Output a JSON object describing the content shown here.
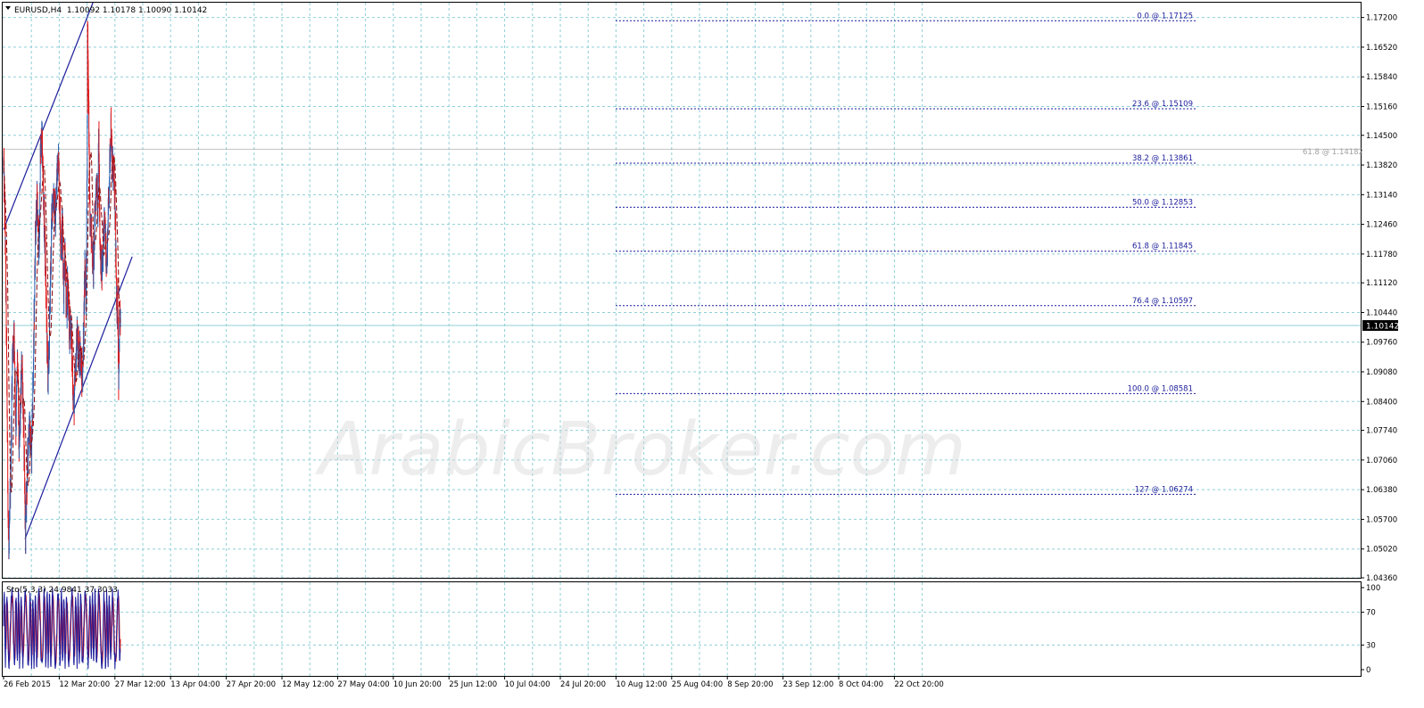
{
  "chart_data": {
    "type": "candlestick",
    "symbol_header": "EURUSD,H4  1.10092 1.10178 1.10090 1.10142",
    "watermark": "ArabicBroker.com",
    "price_axis": {
      "ylim": [
        1.0436,
        1.1754
      ],
      "ticks": [
        "1.17200",
        "1.16520",
        "1.15840",
        "1.15160",
        "1.14500",
        "1.13820",
        "1.13140",
        "1.12460",
        "1.11780",
        "1.11120",
        "1.10440",
        "1.09760",
        "1.09080",
        "1.08400",
        "1.07740",
        "1.07060",
        "1.06380",
        "1.05700",
        "1.05020",
        "1.04360"
      ],
      "current_price": "1.10142",
      "current_value": 1.10142
    },
    "time_axis": {
      "labels": [
        "26 Feb 2015",
        "12 Mar 20:00",
        "27 Mar 12:00",
        "13 Apr 04:00",
        "27 Apr 20:00",
        "12 May 12:00",
        "27 May 04:00",
        "10 Jun 20:00",
        "25 Jun 12:00",
        "10 Jul 04:00",
        "24 Jul 20:00",
        "10 Aug 12:00",
        "25 Aug 04:00",
        "8 Sep 20:00",
        "23 Sep 12:00",
        "8 Oct 04:00",
        "22 Oct 20:00"
      ]
    },
    "price_path": [
      [
        0,
        1.138
      ],
      [
        0.03,
        1.122
      ],
      [
        0.05,
        1.1
      ],
      [
        0.08,
        1.06
      ],
      [
        0.095,
        1.048
      ],
      [
        0.13,
        1.07
      ],
      [
        0.16,
        1.095
      ],
      [
        0.19,
        1.1
      ],
      [
        0.22,
        1.078
      ],
      [
        0.25,
        1.094
      ],
      [
        0.28,
        1.072
      ],
      [
        0.33,
        1.094
      ],
      [
        0.36,
        1.078
      ],
      [
        0.39,
        1.054
      ],
      [
        0.42,
        1.066
      ],
      [
        0.46,
        1.08
      ],
      [
        0.5,
        1.072
      ],
      [
        0.54,
        1.095
      ],
      [
        0.57,
        1.122
      ],
      [
        0.6,
        1.13
      ],
      [
        0.64,
        1.118
      ],
      [
        0.66,
        1.14
      ],
      [
        0.69,
        1.144
      ],
      [
        0.72,
        1.13
      ],
      [
        0.75,
        1.116
      ],
      [
        0.78,
        1.098
      ],
      [
        0.8,
        1.088
      ],
      [
        0.82,
        1.097
      ],
      [
        0.84,
        1.112
      ],
      [
        0.87,
        1.128
      ],
      [
        0.9,
        1.132
      ],
      [
        0.93,
        1.125
      ],
      [
        0.96,
        1.136
      ],
      [
        0.98,
        1.142
      ],
      [
        1.0,
        1.132
      ],
      [
        1.03,
        1.12
      ],
      [
        1.06,
        1.124
      ],
      [
        1.08,
        1.11
      ],
      [
        1.1,
        1.12
      ],
      [
        1.13,
        1.102
      ],
      [
        1.15,
        1.112
      ],
      [
        1.18,
        1.098
      ],
      [
        1.2,
        1.104
      ],
      [
        1.23,
        1.094
      ],
      [
        1.26,
        1.082
      ],
      [
        1.29,
        1.09
      ],
      [
        1.32,
        1.1
      ],
      [
        1.35,
        1.094
      ],
      [
        1.38,
        1.096
      ],
      [
        1.41,
        1.088
      ],
      [
        1.43,
        1.095
      ],
      [
        1.46,
        1.116
      ],
      [
        1.48,
        1.108
      ],
      [
        1.5,
        1.136
      ],
      [
        1.51,
        1.17
      ],
      [
        1.53,
        1.148
      ],
      [
        1.55,
        1.128
      ],
      [
        1.58,
        1.122
      ],
      [
        1.61,
        1.114
      ],
      [
        1.64,
        1.126
      ],
      [
        1.67,
        1.136
      ],
      [
        1.69,
        1.128
      ],
      [
        1.71,
        1.146
      ],
      [
        1.73,
        1.118
      ],
      [
        1.76,
        1.114
      ],
      [
        1.79,
        1.12
      ],
      [
        1.82,
        1.126
      ],
      [
        1.85,
        1.114
      ],
      [
        1.88,
        1.128
      ],
      [
        1.91,
        1.14
      ],
      [
        1.93,
        1.148
      ],
      [
        1.95,
        1.136
      ],
      [
        1.97,
        1.138
      ],
      [
        1.99,
        1.132
      ],
      [
        2.01,
        1.124
      ],
      [
        2.03,
        1.104
      ],
      [
        2.05,
        1.108
      ],
      [
        2.065,
        1.089
      ],
      [
        2.08,
        1.1
      ],
      [
        2.09,
        1.104
      ],
      [
        2.1,
        1.1014
      ]
    ],
    "channel": {
      "upper": [
        [
          0,
          1.1234
        ],
        [
          1.605,
          1.1754
        ]
      ],
      "lower": [
        [
          0.385,
          1.0525
        ],
        [
          2.31,
          1.1172
        ]
      ]
    },
    "fibonacci": [
      {
        "label": "0.0 @ 1.17125",
        "value": 1.17125
      },
      {
        "label": "23.6 @ 1.15109",
        "value": 1.15109
      },
      {
        "label": "38.2 @ 1.13861",
        "value": 1.13861
      },
      {
        "label": "50.0 @ 1.12853",
        "value": 1.12853
      },
      {
        "label": "61.8 @ 1.11845",
        "value": 1.11845
      },
      {
        "label": "76.4 @ 1.10597",
        "value": 1.10597
      },
      {
        "label": "100.0 @ 1.08581",
        "value": 1.08581
      },
      {
        "label": "127 @ 1.06274",
        "value": 1.06274
      }
    ],
    "extra_level": {
      "label": "61.8 @ 1.14182",
      "value": 1.14182
    },
    "stochastic": {
      "header": "Sto(5,3,3) 24.9841 37.3033",
      "ylim": [
        0,
        100
      ],
      "ticks": [
        "100",
        "70",
        "30",
        "0"
      ],
      "main_last": 24.9841,
      "signal_last": 37.3033
    },
    "colors": {
      "bull_candle": "#2a5fb0",
      "bear_candle": "#e01818",
      "moving_average": "#8b0a0a",
      "channel": "#1c1c9c",
      "fib": "#1c1c9c",
      "grid": "#8fcfd6",
      "sto_main": "#1c1c9c",
      "sto_signal": "#e01818"
    }
  }
}
